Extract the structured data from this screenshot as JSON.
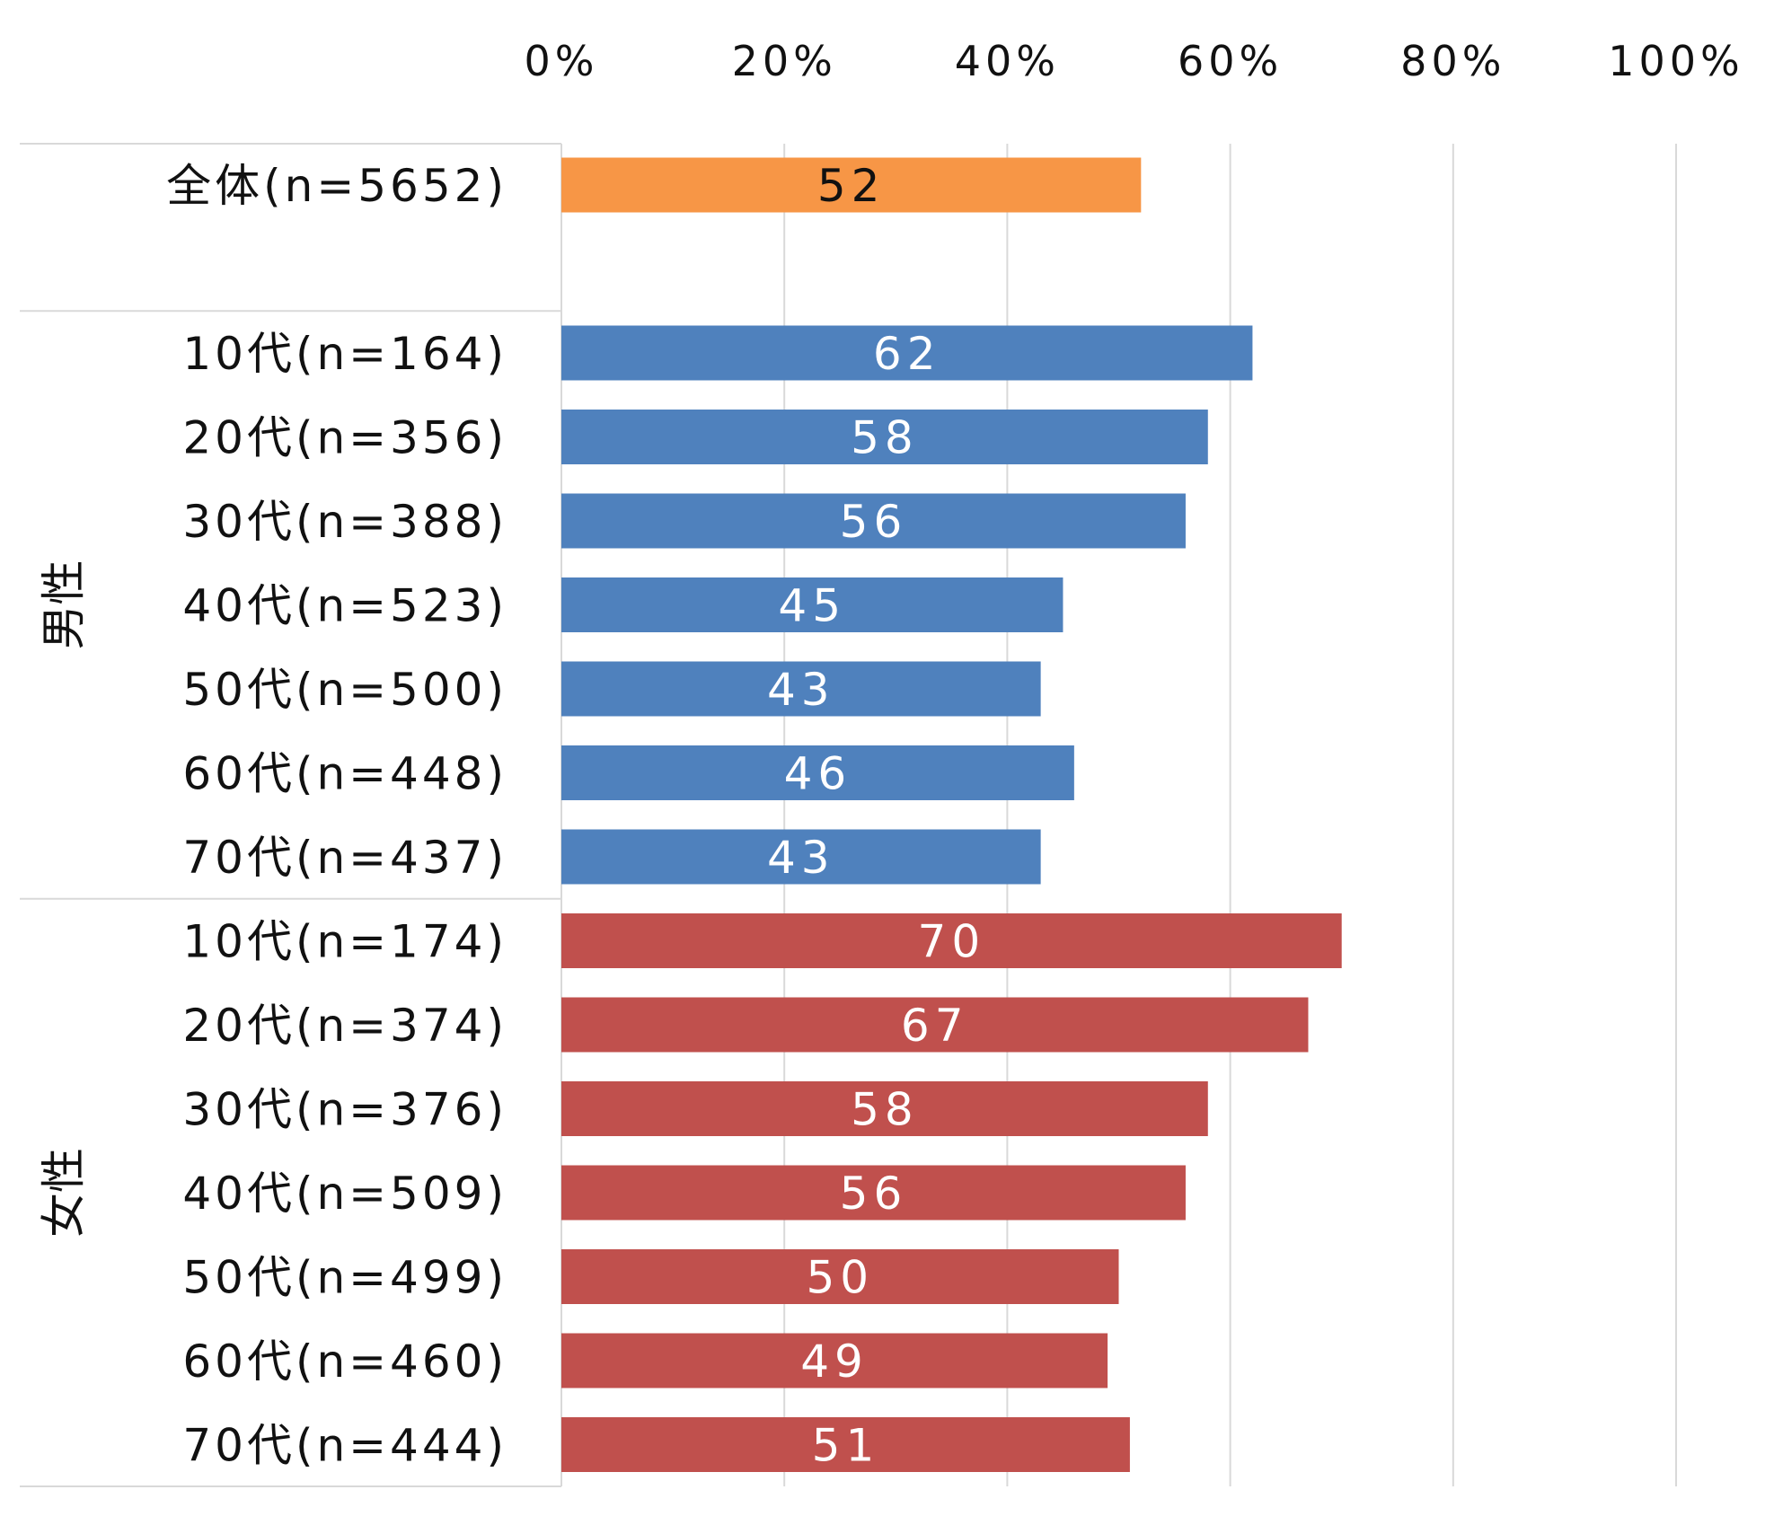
{
  "chart_data": {
    "type": "bar",
    "orientation": "horizontal",
    "xlim": [
      0,
      100
    ],
    "x_ticks": [
      "0%",
      "20%",
      "40%",
      "60%",
      "80%",
      "100%"
    ],
    "grid": true,
    "groups": [
      {
        "label": "",
        "color": "#F79646",
        "label_color": "#111111",
        "bars": [
          {
            "label": "全体(n=5652)",
            "value": 52
          }
        ]
      },
      {
        "label": "男性",
        "color": "#4F81BD",
        "label_color": "#FFFFFF",
        "bars": [
          {
            "label": "10代(n=164)",
            "value": 62
          },
          {
            "label": "20代(n=356)",
            "value": 58
          },
          {
            "label": "30代(n=388)",
            "value": 56
          },
          {
            "label": "40代(n=523)",
            "value": 45
          },
          {
            "label": "50代(n=500)",
            "value": 43
          },
          {
            "label": "60代(n=448)",
            "value": 46
          },
          {
            "label": "70代(n=437)",
            "value": 43
          }
        ]
      },
      {
        "label": "女性",
        "color": "#C0504D",
        "label_color": "#FFFFFF",
        "bars": [
          {
            "label": "10代(n=174)",
            "value": 70
          },
          {
            "label": "20代(n=374)",
            "value": 67
          },
          {
            "label": "30代(n=376)",
            "value": 58
          },
          {
            "label": "40代(n=509)",
            "value": 56
          },
          {
            "label": "50代(n=499)",
            "value": 50
          },
          {
            "label": "60代(n=460)",
            "value": 49
          },
          {
            "label": "70代(n=444)",
            "value": 51
          }
        ]
      }
    ]
  }
}
